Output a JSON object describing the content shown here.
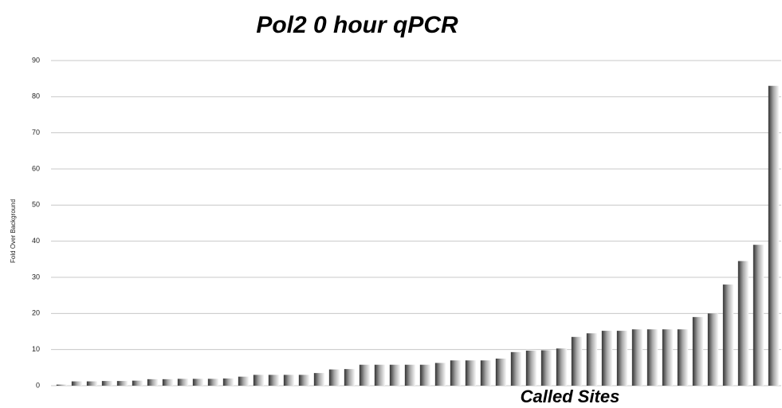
{
  "chart_data": {
    "type": "bar",
    "title": "Pol2 0 hour qPCR",
    "x_label": "Called Sites",
    "y_label": "Fold Over Background",
    "categories": [
      null,
      null,
      null,
      null,
      null,
      null,
      null,
      null,
      null,
      null,
      null,
      null,
      null,
      null,
      null,
      null,
      null,
      null,
      null,
      null,
      null,
      null,
      null,
      null,
      null,
      null,
      null,
      null,
      null,
      null,
      null,
      null,
      null,
      null,
      null,
      null,
      null,
      null,
      null,
      null,
      null,
      null,
      null,
      null,
      null,
      null,
      null,
      null
    ],
    "values": [
      0.3,
      1.2,
      1.2,
      1.3,
      1.3,
      1.4,
      1.8,
      1.8,
      1.9,
      1.9,
      1.9,
      2.0,
      2.5,
      3.0,
      3.0,
      3.0,
      3.0,
      3.5,
      4.5,
      4.6,
      5.8,
      5.8,
      5.8,
      5.8,
      5.8,
      6.3,
      7.0,
      7.0,
      7.0,
      7.5,
      9.3,
      9.7,
      9.8,
      10.3,
      13.5,
      14.5,
      15.2,
      15.2,
      15.6,
      15.6,
      15.6,
      15.6,
      19,
      20,
      28,
      34.5,
      39,
      83
    ],
    "color": "#333333",
    "ylim": [
      0,
      90
    ],
    "yticks": [
      0,
      10,
      20,
      30,
      40,
      50,
      60,
      70,
      80,
      90
    ],
    "grid": true
  }
}
